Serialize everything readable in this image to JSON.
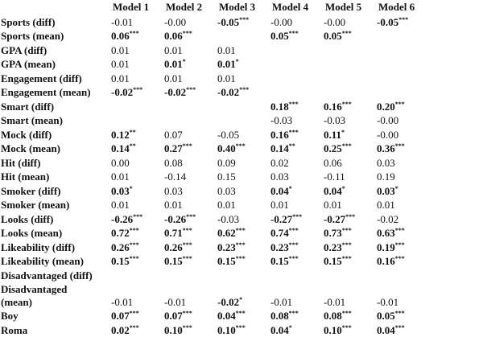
{
  "table": {
    "columns": [
      "Model 1",
      "Model 2",
      "Model 3",
      "Model 4",
      "Model 5",
      "Model 6"
    ],
    "rows": [
      {
        "label": "Sports (diff)",
        "cells": [
          {
            "text": "-0.01"
          },
          {
            "text": "-0.00"
          },
          {
            "text": "-0.05",
            "stars": "***",
            "bold": true
          },
          {
            "text": "-0.00"
          },
          {
            "text": "-0.00"
          },
          {
            "text": "-0.05",
            "stars": "***",
            "bold": true
          }
        ]
      },
      {
        "label": "Sports (mean)",
        "cells": [
          {
            "text": "0.06",
            "stars": "***",
            "bold": true
          },
          {
            "text": "0.06",
            "stars": "***",
            "bold": true
          },
          null,
          {
            "text": "0.05",
            "stars": "***",
            "bold": true
          },
          {
            "text": "0.05",
            "stars": "***",
            "bold": true
          },
          null
        ]
      },
      {
        "label": "GPA (diff)",
        "cells": [
          {
            "text": "0.01"
          },
          {
            "text": "0.01"
          },
          {
            "text": "0.01"
          },
          null,
          null,
          null
        ]
      },
      {
        "label": "GPA (mean)",
        "cells": [
          {
            "text": "0.01"
          },
          {
            "text": "0.01",
            "stars": "*",
            "bold": true
          },
          {
            "text": "0.01",
            "stars": "*",
            "bold": true
          },
          null,
          null,
          null
        ]
      },
      {
        "label": "Engagement (diff)",
        "cells": [
          {
            "text": "0.01"
          },
          {
            "text": "0.01"
          },
          {
            "text": "0.01"
          },
          null,
          null,
          null
        ]
      },
      {
        "label": "Engagement (mean)",
        "cells": [
          {
            "text": "-0.02",
            "stars": "***",
            "bold": true
          },
          {
            "text": "-0.02",
            "stars": "***",
            "bold": true
          },
          {
            "text": "-0.02",
            "stars": "***",
            "bold": true
          },
          null,
          null,
          null
        ]
      },
      {
        "label": "Smart (diff)",
        "cells": [
          null,
          null,
          null,
          {
            "text": "0.18",
            "stars": "***",
            "bold": true
          },
          {
            "text": "0.16",
            "stars": "***",
            "bold": true
          },
          {
            "text": "0.20",
            "stars": "***",
            "bold": true
          }
        ]
      },
      {
        "label": "Smart (mean)",
        "cells": [
          null,
          null,
          null,
          {
            "text": "-0.03"
          },
          {
            "text": "-0.03"
          },
          {
            "text": "-0.00"
          }
        ]
      },
      {
        "label": "Mock (diff)",
        "cells": [
          {
            "text": "0.12",
            "stars": "**",
            "bold": true
          },
          {
            "text": "0.07"
          },
          {
            "text": "-0.05"
          },
          {
            "text": "0.16",
            "stars": "***",
            "bold": true
          },
          {
            "text": "0.11",
            "stars": "*",
            "bold": true
          },
          {
            "text": "-0.00"
          }
        ]
      },
      {
        "label": "Mock (mean)",
        "cells": [
          {
            "text": "0.14",
            "stars": "**",
            "bold": true
          },
          {
            "text": "0.27",
            "stars": "***",
            "bold": true
          },
          {
            "text": "0.40",
            "stars": "***",
            "bold": true
          },
          {
            "text": "0.14",
            "stars": "**",
            "bold": true
          },
          {
            "text": "0.25",
            "stars": "***",
            "bold": true
          },
          {
            "text": "0.36",
            "stars": "***",
            "bold": true
          }
        ]
      },
      {
        "label": "Hit (diff)",
        "cells": [
          {
            "text": "0.00"
          },
          {
            "text": "0.08"
          },
          {
            "text": "0.09"
          },
          {
            "text": "0.02"
          },
          {
            "text": "0.06"
          },
          {
            "text": "0.03"
          }
        ]
      },
      {
        "label": "Hit (mean)",
        "cells": [
          {
            "text": "0.01"
          },
          {
            "text": "-0.14"
          },
          {
            "text": "0.15"
          },
          {
            "text": "0.03"
          },
          {
            "text": "-0.11"
          },
          {
            "text": "0.19"
          }
        ]
      },
      {
        "label": "Smoker (diff)",
        "cells": [
          {
            "text": "0.03",
            "stars": "*",
            "bold": true
          },
          {
            "text": "0.03"
          },
          {
            "text": "0.03"
          },
          {
            "text": "0.04",
            "stars": "*",
            "bold": true
          },
          {
            "text": "0.04",
            "stars": "*",
            "bold": true
          },
          {
            "text": "0.03",
            "stars": "*",
            "bold": true
          }
        ]
      },
      {
        "label": "Smoker (mean)",
        "cells": [
          {
            "text": "0.01"
          },
          {
            "text": "0.01"
          },
          {
            "text": "0.01"
          },
          {
            "text": "0.01"
          },
          {
            "text": "0.01"
          },
          {
            "text": "0.01"
          }
        ]
      },
      {
        "label": "Looks (diff)",
        "cells": [
          {
            "text": "-0.26",
            "stars": "***",
            "bold": true
          },
          {
            "text": "-0.26",
            "stars": "***",
            "bold": true
          },
          {
            "text": "-0.03"
          },
          {
            "text": "-0.27",
            "stars": "***",
            "bold": true
          },
          {
            "text": "-0.27",
            "stars": "***",
            "bold": true
          },
          {
            "text": "-0.02"
          }
        ]
      },
      {
        "label": "Looks (mean)",
        "cells": [
          {
            "text": "0.72",
            "stars": "***",
            "bold": true
          },
          {
            "text": "0.71",
            "stars": "***",
            "bold": true
          },
          {
            "text": "0.62",
            "stars": "***",
            "bold": true
          },
          {
            "text": "0.74",
            "stars": "***",
            "bold": true
          },
          {
            "text": "0.73",
            "stars": "***",
            "bold": true
          },
          {
            "text": "0.63",
            "stars": "***",
            "bold": true
          }
        ]
      },
      {
        "label": "Likeability (diff)",
        "cells": [
          {
            "text": "0.26",
            "stars": "***",
            "bold": true
          },
          {
            "text": "0.26",
            "stars": "***",
            "bold": true
          },
          {
            "text": "0.23",
            "stars": "***",
            "bold": true
          },
          {
            "text": "0.23",
            "stars": "***",
            "bold": true
          },
          {
            "text": "0.23",
            "stars": "***",
            "bold": true
          },
          {
            "text": "0.19",
            "stars": "***",
            "bold": true
          }
        ]
      },
      {
        "label": "Likeability (mean)",
        "cells": [
          {
            "text": "0.15",
            "stars": "***",
            "bold": true
          },
          {
            "text": "0.15",
            "stars": "***",
            "bold": true
          },
          {
            "text": "0.15",
            "stars": "***",
            "bold": true
          },
          {
            "text": "0.15",
            "stars": "***",
            "bold": true
          },
          {
            "text": "0.15",
            "stars": "***",
            "bold": true
          },
          {
            "text": "0.16",
            "stars": "***",
            "bold": true
          }
        ]
      },
      {
        "label": "Disadvantaged (diff)",
        "cells": [
          null,
          null,
          null,
          null,
          null,
          null
        ]
      },
      {
        "label": "Disadvantaged (mean)",
        "cells": [
          {
            "text": "-0.01"
          },
          {
            "text": "-0.01"
          },
          {
            "text": "-0.02",
            "stars": "*",
            "bold": true
          },
          {
            "text": "-0.01"
          },
          {
            "text": "-0.01"
          },
          {
            "text": "-0.01"
          }
        ]
      },
      {
        "label": "Boy",
        "cells": [
          {
            "text": "0.07",
            "stars": "***",
            "bold": true
          },
          {
            "text": "0.07",
            "stars": "***",
            "bold": true
          },
          {
            "text": "0.04",
            "stars": "***",
            "bold": true
          },
          {
            "text": "0.08",
            "stars": "***",
            "bold": true
          },
          {
            "text": "0.08",
            "stars": "***",
            "bold": true
          },
          {
            "text": "0.05",
            "stars": "***",
            "bold": true
          }
        ]
      },
      {
        "label": "Roma",
        "cells": [
          {
            "text": "0.02",
            "stars": "***",
            "bold": true
          },
          {
            "text": "0.10",
            "stars": "***",
            "bold": true
          },
          {
            "text": "0.10",
            "stars": "***",
            "bold": true
          },
          {
            "text": "0.04",
            "stars": "*",
            "bold": true
          },
          {
            "text": "0.10",
            "stars": "***",
            "bold": true
          },
          {
            "text": "0.04",
            "stars": "***",
            "bold": true
          }
        ]
      }
    ]
  }
}
